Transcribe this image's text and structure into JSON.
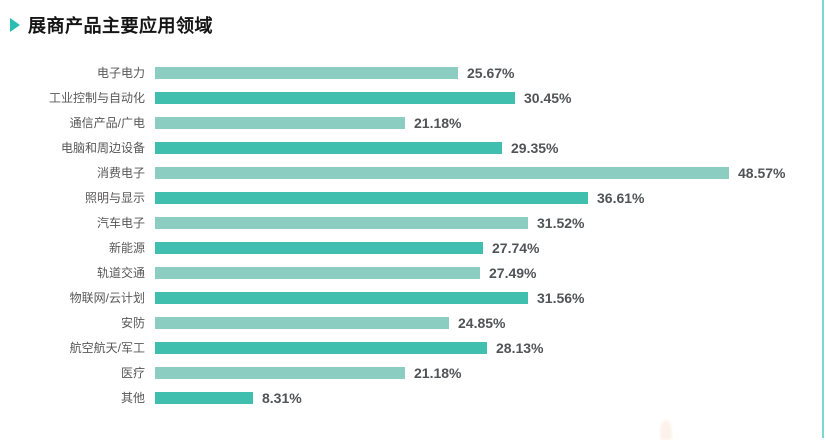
{
  "header": {
    "title": "展商产品主要应用领域"
  },
  "icons": {
    "title_marker": "play-triangle-right-icon"
  },
  "colors": {
    "bar_light": "#8bcec1",
    "bar_dark": "#40bfaf",
    "title_marker": "#2bbcb2",
    "category_text": "#595757",
    "value_text": "#515457",
    "right_edge_line": "#79d7cf",
    "title_text": "#151515"
  },
  "chart_data": {
    "type": "bar",
    "orientation": "horizontal",
    "title": "展商产品主要应用领域",
    "categories": [
      "电子电力",
      "工业控制与自动化",
      "通信产品/广电",
      "电脑和周边设备",
      "消费电子",
      "照明与显示",
      "汽车电子",
      "新能源",
      "轨道交通",
      "物联网/云计划",
      "安防",
      "航空航天/军工",
      "医疗",
      "其他"
    ],
    "values": [
      25.67,
      30.45,
      21.18,
      29.35,
      48.57,
      36.61,
      31.52,
      27.74,
      27.49,
      31.56,
      24.85,
      28.13,
      21.18,
      8.31
    ],
    "value_labels": [
      "25.67%",
      "30.45%",
      "21.18%",
      "29.35%",
      "48.57%",
      "36.61%",
      "31.52%",
      "27.74%",
      "27.49%",
      "31.56%",
      "24.85%",
      "28.13%",
      "21.18%",
      "8.31%"
    ],
    "unit": "%",
    "xlim": [
      0,
      50
    ],
    "grid": false,
    "legend": null,
    "bar_palette_alternating": [
      "#8bcec1",
      "#40bfaf"
    ]
  }
}
